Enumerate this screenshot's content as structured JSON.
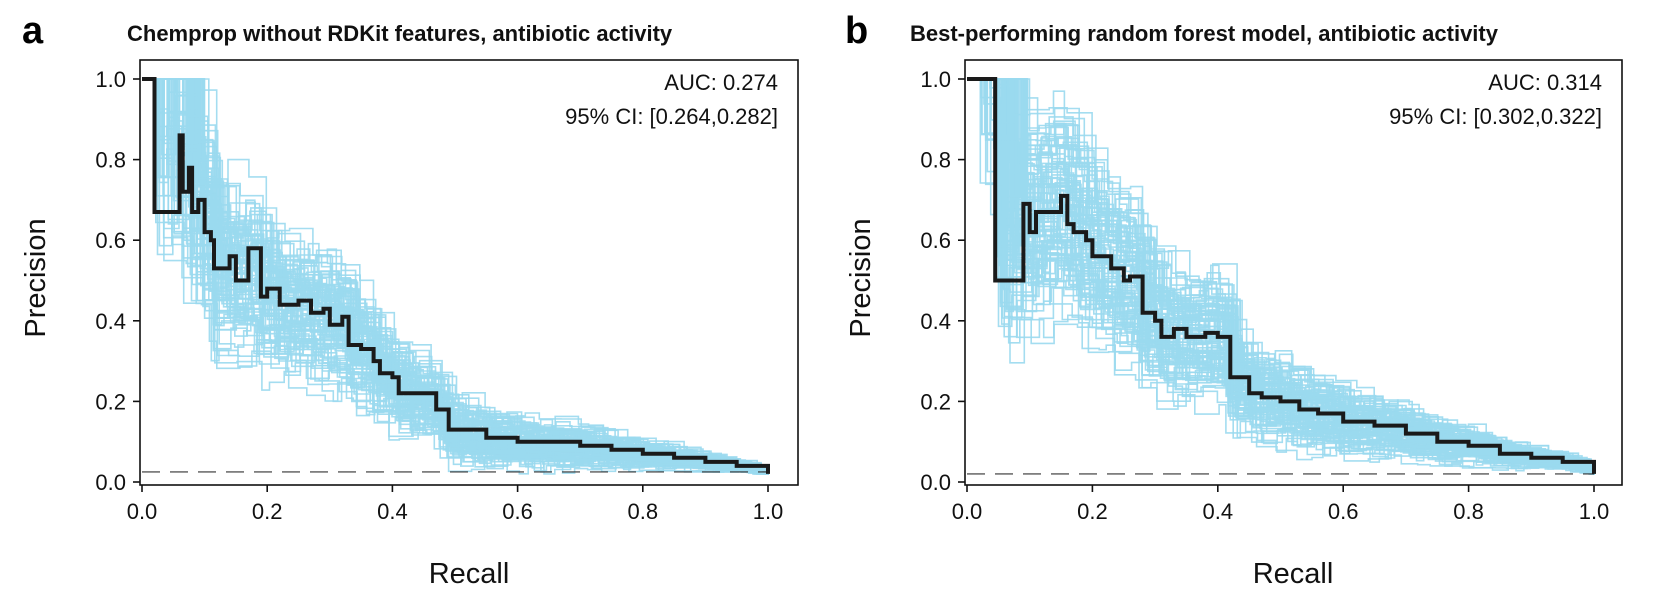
{
  "figure": {
    "panels": [
      {
        "letter": "a",
        "title": "Chemprop without RDKit features, antibiotic activity",
        "auc_text": "AUC: 0.274",
        "ci_text": "95% CI: [0.264,0.282]",
        "xlabel": "Recall",
        "ylabel": "Precision",
        "xticks": [
          "0.0",
          "0.2",
          "0.4",
          "0.6",
          "0.8",
          "1.0"
        ],
        "yticks": [
          "0.0",
          "0.2",
          "0.4",
          "0.6",
          "0.8",
          "1.0"
        ]
      },
      {
        "letter": "b",
        "title": "Best-performing random forest model, antibiotic activity",
        "auc_text": "AUC: 0.314",
        "ci_text": "95% CI: [0.302,0.322]",
        "xlabel": "Recall",
        "ylabel": "Precision",
        "xticks": [
          "0.0",
          "0.2",
          "0.4",
          "0.6",
          "0.8",
          "1.0"
        ],
        "yticks": [
          "0.0",
          "0.2",
          "0.4",
          "0.6",
          "0.8",
          "1.0"
        ]
      }
    ]
  },
  "colors": {
    "bootstrap": "#9ad9ee",
    "main_curve": "#1a1a1a",
    "baseline": "#333333"
  },
  "chart_data": [
    {
      "type": "line",
      "title": "Chemprop without RDKit features, antibiotic activity",
      "xlabel": "Recall",
      "ylabel": "Precision",
      "xlim": [
        0,
        1
      ],
      "ylim": [
        0,
        1
      ],
      "auc": 0.274,
      "ci": [
        0.264,
        0.282
      ],
      "baseline_precision": 0.025,
      "bootstrap_curves": 100,
      "series": [
        {
          "x": [
            0.0,
            0.02,
            0.02,
            0.06,
            0.065,
            0.075,
            0.08,
            0.09,
            0.1,
            0.11,
            0.115,
            0.14,
            0.15,
            0.17,
            0.19,
            0.2,
            0.22,
            0.25,
            0.27,
            0.29,
            0.3,
            0.32,
            0.33,
            0.35,
            0.37,
            0.38,
            0.4,
            0.41,
            0.44,
            0.47,
            0.49,
            0.55,
            0.6,
            0.7,
            0.75,
            0.8,
            0.85,
            0.9,
            0.95,
            1.0
          ],
          "y": [
            1.0,
            1.0,
            0.67,
            0.86,
            0.72,
            0.78,
            0.67,
            0.7,
            0.62,
            0.6,
            0.53,
            0.56,
            0.5,
            0.58,
            0.46,
            0.48,
            0.44,
            0.45,
            0.42,
            0.43,
            0.39,
            0.41,
            0.34,
            0.33,
            0.3,
            0.27,
            0.26,
            0.22,
            0.22,
            0.18,
            0.13,
            0.11,
            0.1,
            0.09,
            0.08,
            0.07,
            0.06,
            0.05,
            0.04,
            0.02
          ]
        }
      ]
    },
    {
      "type": "line",
      "title": "Best-performing random forest model, antibiotic activity",
      "xlabel": "Recall",
      "ylabel": "Precision",
      "xlim": [
        0,
        1
      ],
      "ylim": [
        0,
        1
      ],
      "auc": 0.314,
      "ci": [
        0.302,
        0.322
      ],
      "baseline_precision": 0.02,
      "bootstrap_curves": 100,
      "series": [
        {
          "x": [
            0.0,
            0.045,
            0.045,
            0.09,
            0.1,
            0.11,
            0.15,
            0.16,
            0.17,
            0.19,
            0.2,
            0.21,
            0.23,
            0.25,
            0.26,
            0.28,
            0.3,
            0.31,
            0.33,
            0.35,
            0.38,
            0.4,
            0.42,
            0.45,
            0.47,
            0.5,
            0.53,
            0.56,
            0.6,
            0.65,
            0.7,
            0.75,
            0.8,
            0.85,
            0.9,
            0.95,
            1.0
          ],
          "y": [
            1.0,
            1.0,
            0.5,
            0.69,
            0.62,
            0.67,
            0.71,
            0.64,
            0.62,
            0.6,
            0.56,
            0.56,
            0.53,
            0.5,
            0.51,
            0.42,
            0.4,
            0.36,
            0.38,
            0.36,
            0.37,
            0.36,
            0.26,
            0.22,
            0.21,
            0.2,
            0.18,
            0.17,
            0.15,
            0.14,
            0.12,
            0.1,
            0.09,
            0.07,
            0.06,
            0.05,
            0.02
          ]
        }
      ]
    }
  ]
}
